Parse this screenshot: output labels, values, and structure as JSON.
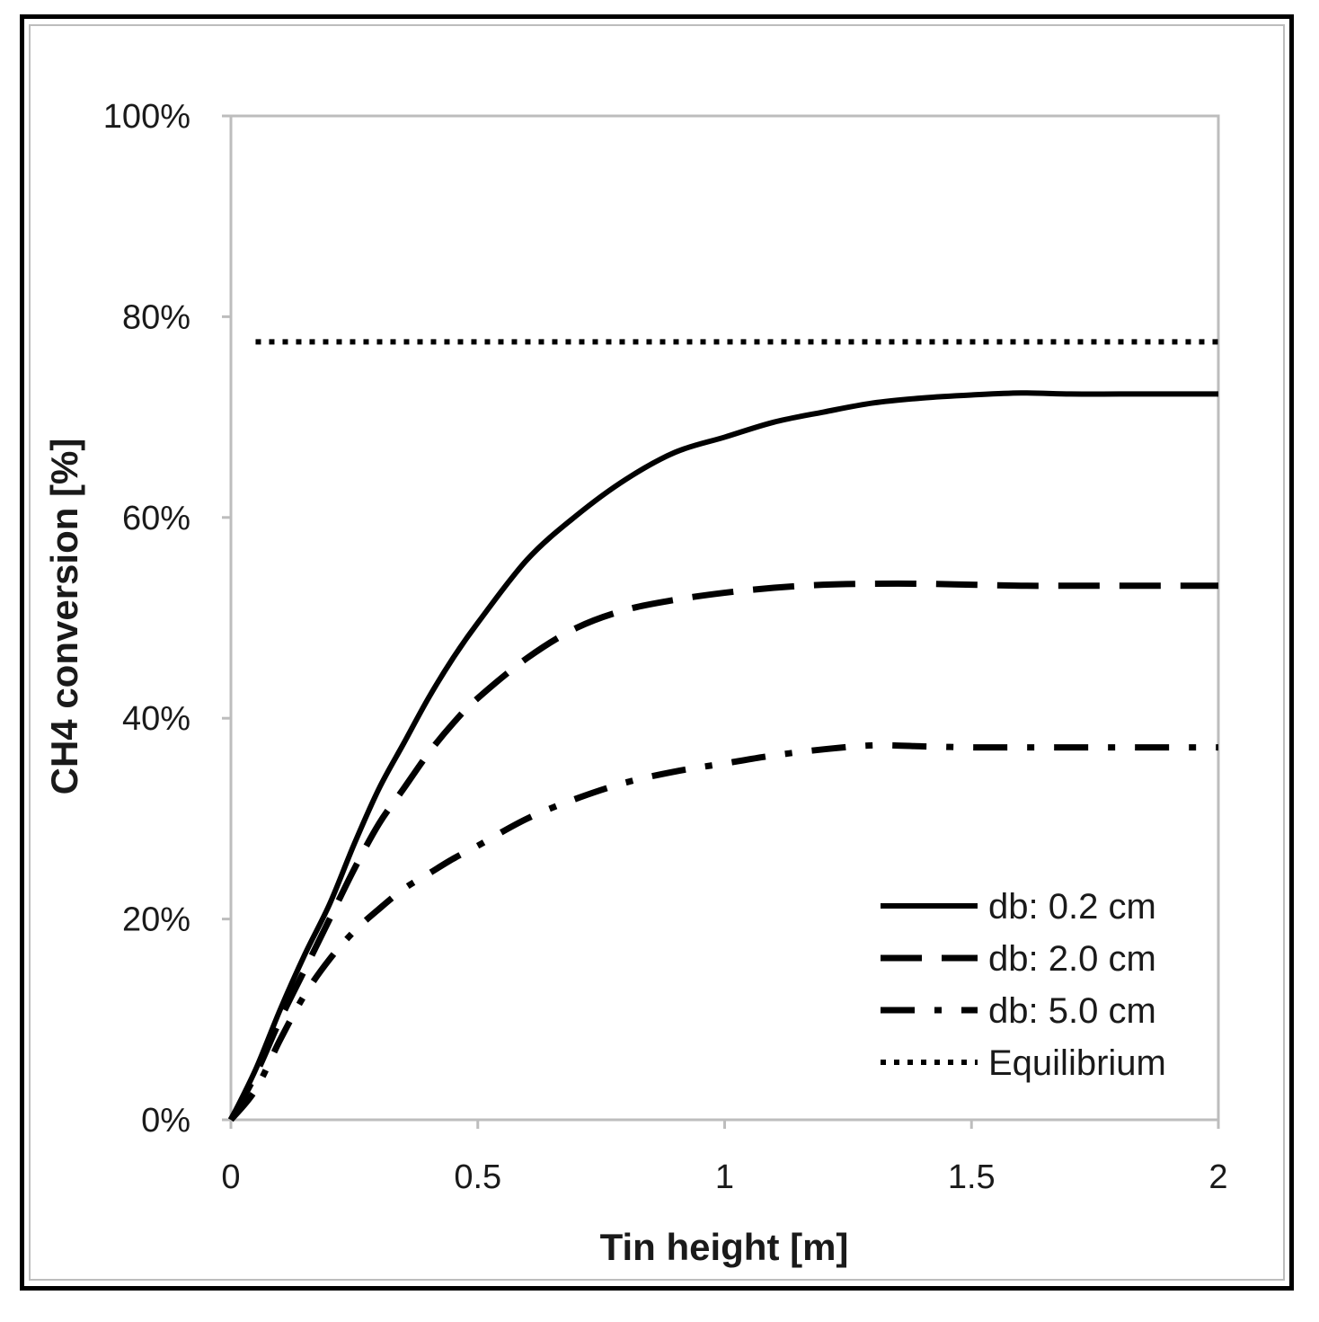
{
  "chart_data": {
    "type": "line",
    "title": "",
    "xlabel": "Tin height [m]",
    "ylabel": "CH4 conversion [%]",
    "xlim": [
      0,
      2
    ],
    "ylim": [
      0,
      100
    ],
    "xticks": [
      "0",
      "0.5",
      "1",
      "1.5",
      "2"
    ],
    "xtick_values": [
      0,
      0.5,
      1,
      1.5,
      2
    ],
    "yticks": [
      "0%",
      "20%",
      "40%",
      "60%",
      "80%",
      "100%"
    ],
    "ytick_values": [
      0,
      20,
      40,
      60,
      80,
      100
    ],
    "grid": false,
    "legend_position": "bottom-right",
    "series": [
      {
        "name": "db: 0.2 cm",
        "style": "solid",
        "x": [
          0,
          0.05,
          0.1,
          0.15,
          0.2,
          0.25,
          0.3,
          0.35,
          0.4,
          0.45,
          0.5,
          0.6,
          0.7,
          0.8,
          0.9,
          1.0,
          1.1,
          1.2,
          1.3,
          1.4,
          1.5,
          1.6,
          1.7,
          1.8,
          1.9,
          2.0
        ],
        "values": [
          0,
          5,
          11,
          16.5,
          21.5,
          27.5,
          33,
          37.5,
          42,
          46,
          49.5,
          55.8,
          60.2,
          63.8,
          66.5,
          68,
          69.5,
          70.5,
          71.4,
          71.9,
          72.2,
          72.4,
          72.3,
          72.3,
          72.3,
          72.3
        ]
      },
      {
        "name": "db: 2.0 cm",
        "style": "dashed",
        "x": [
          0,
          0.05,
          0.1,
          0.15,
          0.2,
          0.25,
          0.3,
          0.35,
          0.4,
          0.45,
          0.5,
          0.6,
          0.7,
          0.8,
          0.9,
          1.0,
          1.1,
          1.2,
          1.3,
          1.4,
          1.5,
          1.6,
          1.7,
          1.8,
          1.9,
          2.0
        ],
        "values": [
          0,
          4.5,
          10,
          15,
          20,
          25,
          29.5,
          33,
          36.5,
          39.5,
          42,
          46,
          49,
          50.8,
          51.8,
          52.5,
          53,
          53.3,
          53.4,
          53.4,
          53.3,
          53.2,
          53.2,
          53.2,
          53.2,
          53.2
        ]
      },
      {
        "name": "db: 5.0 cm",
        "style": "dashdot",
        "x": [
          0,
          0.05,
          0.1,
          0.15,
          0.2,
          0.25,
          0.3,
          0.35,
          0.4,
          0.45,
          0.5,
          0.6,
          0.7,
          0.8,
          0.9,
          1.0,
          1.1,
          1.2,
          1.3,
          1.4,
          1.5,
          1.6,
          1.7,
          1.8,
          1.9,
          2.0
        ],
        "values": [
          0,
          3,
          8,
          12.5,
          16,
          18.8,
          21,
          23,
          24.5,
          26,
          27.3,
          30,
          32,
          33.6,
          34.7,
          35.5,
          36.3,
          36.9,
          37.3,
          37.2,
          37.1,
          37.1,
          37.1,
          37.1,
          37.1,
          37.1
        ]
      },
      {
        "name": "Equilibrium",
        "style": "dotted",
        "x": [
          0.05,
          2.0
        ],
        "values": [
          77.5,
          77.5
        ]
      }
    ]
  },
  "colors": {
    "line": "#000000",
    "axis": "#bdbdbd",
    "text": "#1a1a1a"
  }
}
